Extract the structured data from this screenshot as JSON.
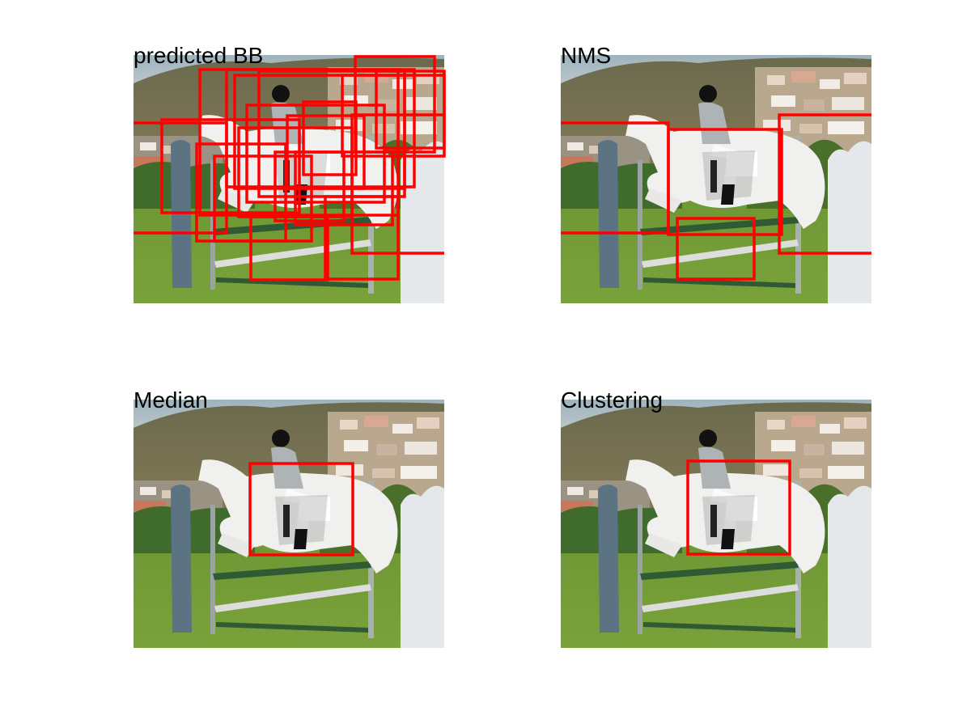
{
  "figure": {
    "panels": [
      {
        "id": "p1",
        "title": "predicted BB"
      },
      {
        "id": "p2",
        "title": "NMS"
      },
      {
        "id": "p3",
        "title": "Median"
      },
      {
        "id": "p4",
        "title": "Clustering"
      }
    ],
    "box_color": "#ff0000"
  }
}
